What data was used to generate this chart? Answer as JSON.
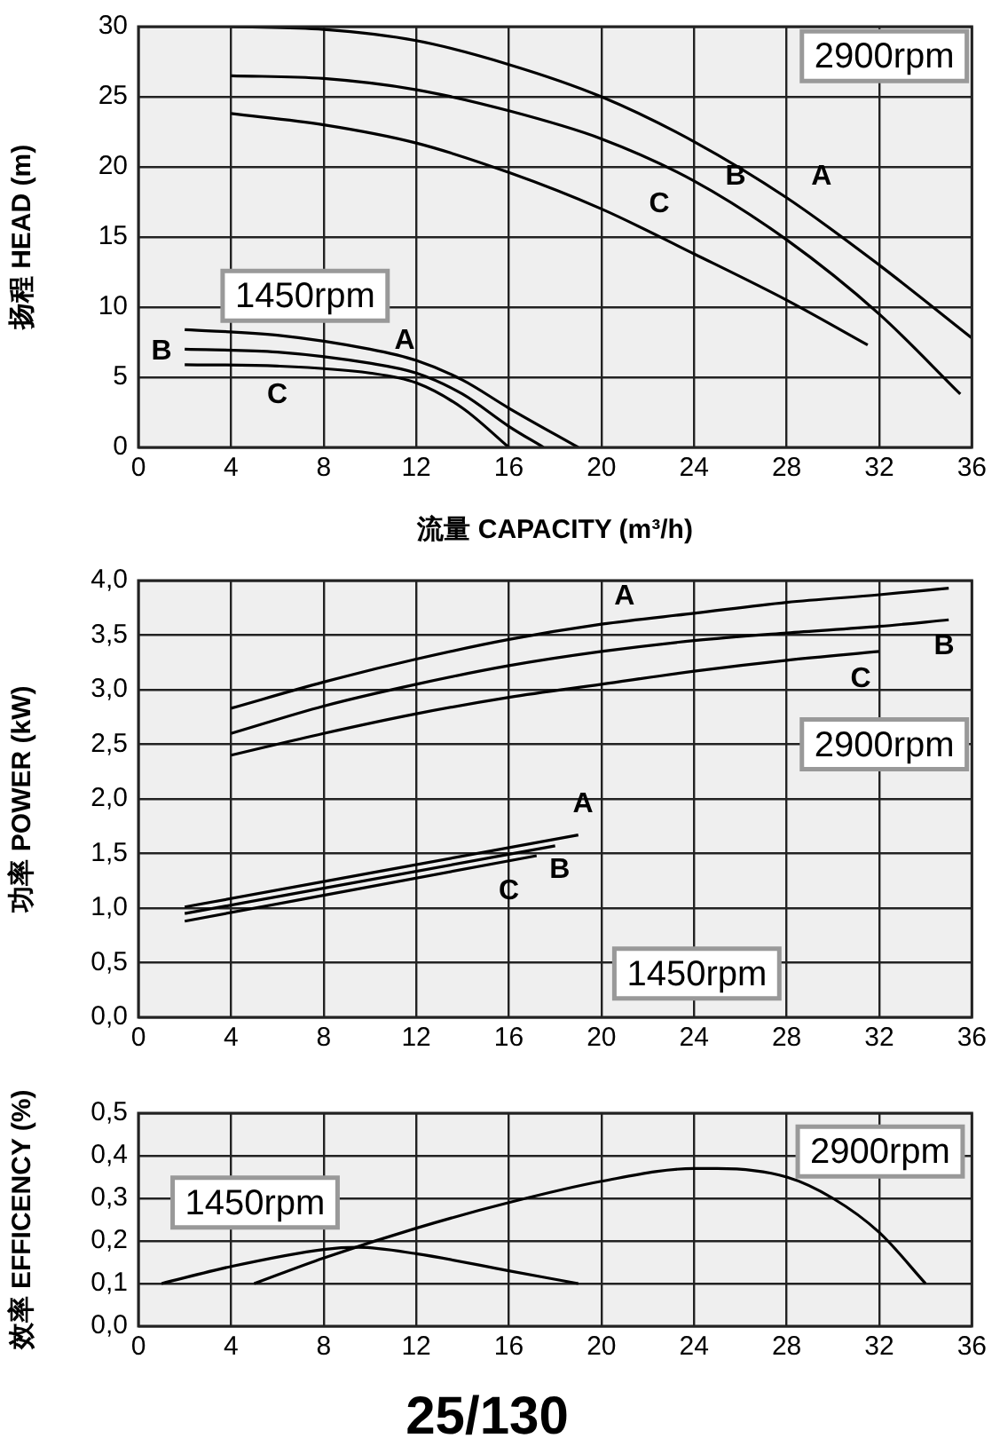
{
  "chart_data": [
    {
      "type": "line",
      "ylabel": "扬程 HEAD (m)",
      "xlabel": "流量 CAPACITY (m³/h)",
      "xlim": [
        0,
        36
      ],
      "xticks": [
        0,
        4,
        8,
        12,
        16,
        20,
        24,
        28,
        32,
        36
      ],
      "ylim": [
        0,
        30
      ],
      "yticks": [
        0,
        5,
        10,
        15,
        20,
        25,
        30
      ],
      "grid": true,
      "legend": false,
      "marker": "none",
      "line_style": "solid",
      "series": [
        {
          "name": "A",
          "color": "#000000",
          "x": [
            4,
            8,
            12,
            16,
            20,
            24,
            28,
            32,
            36
          ],
          "values": [
            30,
            29.8,
            29,
            27.3,
            25,
            21.8,
            17.8,
            13,
            7.8
          ]
        },
        {
          "name": "B",
          "color": "#000000",
          "x": [
            4,
            8,
            12,
            16,
            20,
            24,
            28,
            32,
            35.5
          ],
          "values": [
            26.5,
            26.3,
            25.5,
            24,
            22,
            19,
            14.8,
            9.5,
            3.8
          ]
        },
        {
          "name": "C",
          "color": "#000000",
          "x": [
            4,
            8,
            12,
            16,
            20,
            24,
            28,
            31.5
          ],
          "values": [
            23.8,
            23,
            21.7,
            19.6,
            17,
            13.8,
            10.5,
            7.3
          ]
        },
        {
          "name": "A",
          "color": "#000000",
          "x": [
            2,
            6,
            10,
            12,
            14,
            16,
            19
          ],
          "values": [
            8.4,
            8,
            7,
            6.2,
            4.8,
            2.8,
            0
          ]
        },
        {
          "name": "B",
          "color": "#000000",
          "x": [
            2,
            6,
            10,
            12,
            14,
            16,
            17.5
          ],
          "values": [
            7,
            6.8,
            6,
            5.3,
            3.8,
            1.5,
            0
          ]
        },
        {
          "name": "C",
          "color": "#000000",
          "x": [
            2,
            6,
            10,
            12,
            14,
            16
          ],
          "values": [
            5.9,
            5.8,
            5.3,
            4.6,
            2.8,
            0
          ]
        }
      ],
      "annotations": [
        "2900rpm",
        "1450rpm"
      ]
    },
    {
      "type": "line",
      "ylabel": "功率 POWER (kW)",
      "xlim": [
        0,
        36
      ],
      "xticks": [
        0,
        4,
        8,
        12,
        16,
        20,
        24,
        28,
        32,
        36
      ],
      "ylim": [
        0,
        4
      ],
      "yticks": [
        {
          "value": 0,
          "label": "0,0"
        },
        {
          "value": 0.5,
          "label": "0,5"
        },
        {
          "value": 1,
          "label": "1,0"
        },
        {
          "value": 1.5,
          "label": "1,5"
        },
        {
          "value": 2,
          "label": "2,0"
        },
        {
          "value": 2.5,
          "label": "2,5"
        },
        {
          "value": 3,
          "label": "3,0"
        },
        {
          "value": 3.5,
          "label": "3,5"
        },
        {
          "value": 4,
          "label": "4,0"
        }
      ],
      "grid": true,
      "legend": false,
      "marker": "none",
      "line_style": "solid",
      "series": [
        {
          "name": "A",
          "color": "#000000",
          "x": [
            4,
            8,
            12,
            16,
            20,
            24,
            28,
            32,
            35
          ],
          "values": [
            2.83,
            3.07,
            3.28,
            3.46,
            3.6,
            3.7,
            3.8,
            3.87,
            3.93
          ]
        },
        {
          "name": "B",
          "color": "#000000",
          "x": [
            4,
            8,
            12,
            16,
            20,
            24,
            28,
            32,
            35
          ],
          "values": [
            2.6,
            2.85,
            3.05,
            3.22,
            3.35,
            3.45,
            3.52,
            3.58,
            3.64
          ]
        },
        {
          "name": "C",
          "color": "#000000",
          "x": [
            4,
            8,
            12,
            16,
            20,
            24,
            28,
            32
          ],
          "values": [
            2.4,
            2.6,
            2.78,
            2.93,
            3.05,
            3.17,
            3.27,
            3.35
          ]
        },
        {
          "name": "A",
          "color": "#000000",
          "x": [
            2,
            19
          ],
          "values": [
            1.01,
            1.67
          ]
        },
        {
          "name": "B",
          "color": "#000000",
          "x": [
            2,
            18
          ],
          "values": [
            0.95,
            1.57
          ]
        },
        {
          "name": "C",
          "color": "#000000",
          "x": [
            2,
            17.2
          ],
          "values": [
            0.88,
            1.48
          ]
        }
      ],
      "annotations": [
        "2900rpm",
        "1450rpm"
      ]
    },
    {
      "type": "line",
      "title": "25/130",
      "ylabel": "效率 EFFICENCY (%)",
      "xlim": [
        0,
        36
      ],
      "xticks": [
        0,
        4,
        8,
        12,
        16,
        20,
        24,
        28,
        32,
        36
      ],
      "ylim": [
        0,
        0.5
      ],
      "yticks": [
        {
          "value": 0,
          "label": "0,0"
        },
        {
          "value": 0.1,
          "label": "0,1"
        },
        {
          "value": 0.2,
          "label": "0,2"
        },
        {
          "value": 0.3,
          "label": "0,3"
        },
        {
          "value": 0.4,
          "label": "0,4"
        },
        {
          "value": 0.5,
          "label": "0,5"
        }
      ],
      "grid": true,
      "legend": false,
      "marker": "none",
      "line_style": "solid",
      "series": [
        {
          "color": "#000000",
          "x": [
            5,
            8,
            12,
            16,
            20,
            24,
            25,
            28,
            30,
            32,
            34
          ],
          "values": [
            0.1,
            0.16,
            0.23,
            0.29,
            0.34,
            0.37,
            0.37,
            0.35,
            0.3,
            0.22,
            0.1
          ]
        },
        {
          "color": "#000000",
          "x": [
            1,
            4,
            8,
            9.5,
            12,
            16,
            19
          ],
          "values": [
            0.1,
            0.14,
            0.18,
            0.185,
            0.17,
            0.13,
            0.1
          ]
        }
      ],
      "annotations": [
        "1450rpm",
        "2900rpm"
      ]
    }
  ]
}
